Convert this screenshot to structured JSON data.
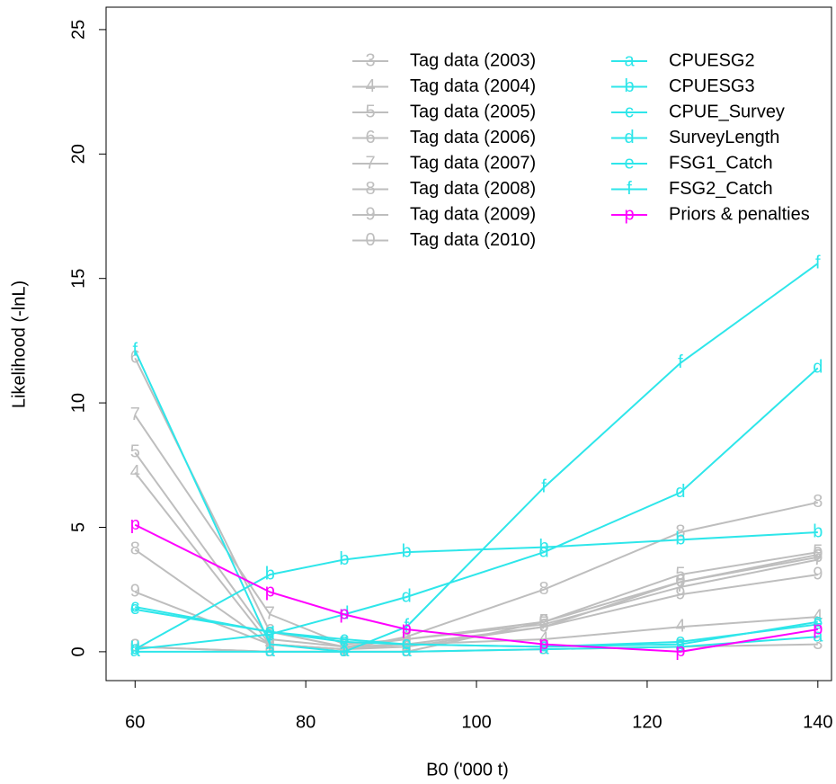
{
  "chart_data": {
    "type": "line",
    "x_label": "B0 ('000 t)",
    "y_label": "Likelihood (-lnL)",
    "x": [
      60,
      75.8,
      84.5,
      91.8,
      107.9,
      123.9,
      140
    ],
    "xlim": [
      56.6,
      141.6
    ],
    "xticks": [
      60,
      80,
      100,
      120,
      140
    ],
    "ylim": [
      -1.16,
      25.9
    ],
    "yticks": [
      0,
      5,
      10,
      15,
      20,
      25
    ],
    "legend_position": "top-right",
    "series": [
      {
        "name": "Tag data (2003)",
        "symbol": "3",
        "color": "#bebebe",
        "values": [
          0.2,
          0,
          0,
          0,
          0.1,
          0.2,
          0.3
        ]
      },
      {
        "name": "Tag data (2004)",
        "symbol": "4",
        "color": "#bebebe",
        "values": [
          7.2,
          0.3,
          0.1,
          0.3,
          0.5,
          1.0,
          1.4
        ]
      },
      {
        "name": "Tag data (2005)",
        "symbol": "5",
        "color": "#bebebe",
        "values": [
          8.0,
          0.5,
          0.2,
          0.5,
          1.2,
          3.1,
          4.0
        ]
      },
      {
        "name": "Tag data (2006)",
        "symbol": "6",
        "color": "#bebebe",
        "values": [
          11.8,
          0.8,
          0.2,
          0.3,
          1.0,
          2.8,
          3.8
        ]
      },
      {
        "name": "Tag data (2007)",
        "symbol": "7",
        "color": "#bebebe",
        "values": [
          9.5,
          1.5,
          0.3,
          0.5,
          1.1,
          2.6,
          3.7
        ]
      },
      {
        "name": "Tag data (2008)",
        "symbol": "8",
        "color": "#bebebe",
        "values": [
          4.1,
          0.3,
          0.1,
          0.6,
          2.5,
          4.8,
          6.0
        ]
      },
      {
        "name": "Tag data (2009)",
        "symbol": "9",
        "color": "#bebebe",
        "values": [
          2.4,
          0.3,
          0.1,
          0.2,
          1.0,
          2.3,
          3.1
        ]
      },
      {
        "name": "Tag data (2010)",
        "symbol": "0",
        "color": "#bebebe",
        "values": [
          0.2,
          0,
          0,
          0,
          1.2,
          2.8,
          3.9
        ]
      },
      {
        "name": "CPUESG2",
        "symbol": "a",
        "color": "#2ee6ea",
        "values": [
          0,
          0,
          0,
          0,
          0.1,
          0.2,
          0.6
        ]
      },
      {
        "name": "CPUESG3",
        "symbol": "b",
        "color": "#2ee6ea",
        "values": [
          0.1,
          3.1,
          3.7,
          4.0,
          4.2,
          4.5,
          4.8
        ]
      },
      {
        "name": "CPUE_Survey",
        "symbol": "c",
        "color": "#2ee6ea",
        "values": [
          1.8,
          0.8,
          0.5,
          0.3,
          0.2,
          0.3,
          1.2
        ]
      },
      {
        "name": "SurveyLength",
        "symbol": "d",
        "color": "#2ee6ea",
        "values": [
          0.1,
          0.7,
          1.5,
          2.2,
          4.0,
          6.4,
          11.4
        ]
      },
      {
        "name": "FSG1_Catch",
        "symbol": "e",
        "color": "#2ee6ea",
        "values": [
          1.7,
          0.8,
          0.4,
          0.3,
          0.2,
          0.4,
          1.1
        ]
      },
      {
        "name": "FSG2_Catch",
        "symbol": "f",
        "color": "#2ee6ea",
        "values": [
          12.1,
          0.3,
          0,
          1.0,
          6.6,
          11.6,
          15.6
        ]
      },
      {
        "name": "Priors & penalties",
        "symbol": "p",
        "color": "#ff00ff",
        "values": [
          5.1,
          2.4,
          1.5,
          0.9,
          0.3,
          0.0,
          0.9
        ]
      }
    ]
  }
}
